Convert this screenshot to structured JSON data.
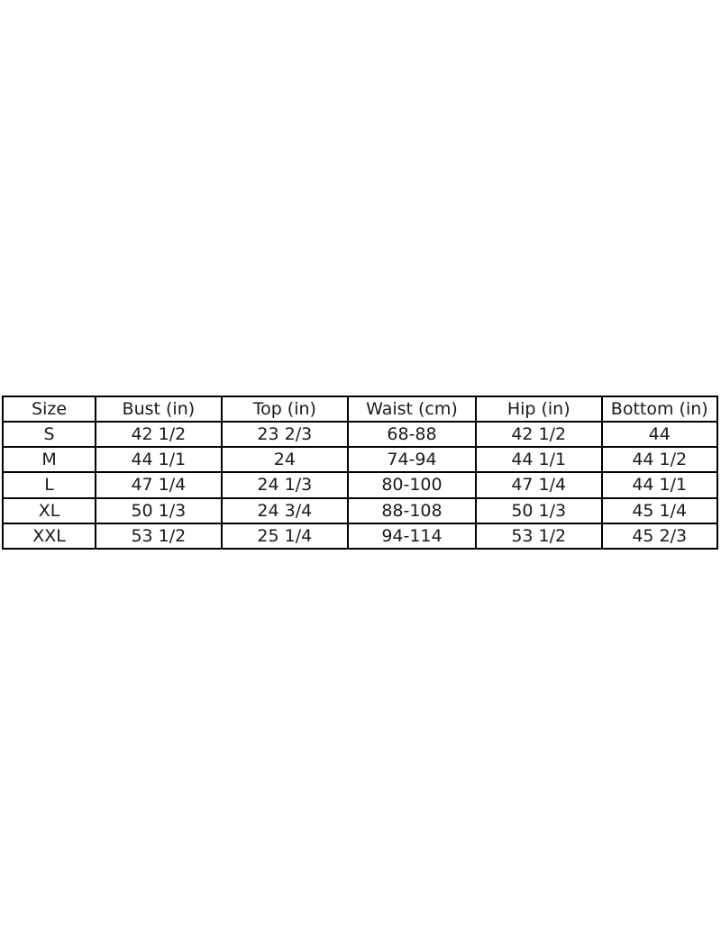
{
  "page": {
    "background": "#ffffff",
    "border_color": "#000000",
    "text_color": "#1a1a1a"
  },
  "chart_data": {
    "type": "table",
    "title": "",
    "columns": [
      "Size",
      "Bust (in)",
      "Top (in)",
      "Waist (cm)",
      "Hip (in)",
      "Bottom (in)"
    ],
    "rows": [
      [
        "S",
        "42 1/2",
        "23 2/3",
        "68-88",
        "42 1/2",
        "44"
      ],
      [
        "M",
        "44 1/1",
        "24",
        "74-94",
        "44 1/1",
        "44 1/2"
      ],
      [
        "L",
        "47 1/4",
        "24 1/3",
        "80-100",
        "47 1/4",
        "44 1/1"
      ],
      [
        "XL",
        "50 1/3",
        "24 3/4",
        "88-108",
        "50 1/3",
        "45 1/4"
      ],
      [
        "XXL",
        "53 1/2",
        "25 1/4",
        "94-114",
        "53 1/2",
        "45 2/3"
      ]
    ],
    "layout": {
      "grid": true,
      "header_row": true,
      "position": "vertically-centered-full-width"
    }
  }
}
